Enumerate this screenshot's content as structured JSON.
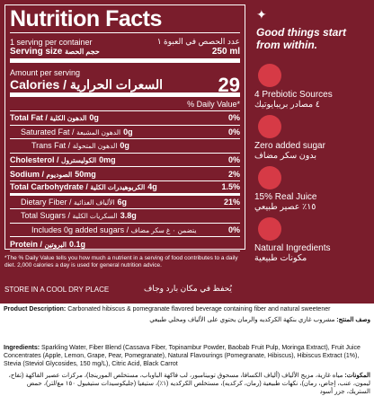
{
  "nutrition": {
    "title": "Nutrition Facts",
    "servings_en": "1 serving per container",
    "servings_ar": "عدد الحصص في العبوة ١",
    "serving_size_en": "Serving size",
    "serving_size_ar": "حجم الحصة",
    "serving_size_value": "250 ml",
    "amount_per_serving": "Amount per serving",
    "calories_en": "Calories /",
    "calories_ar": "السعرات الحرارية",
    "calories_value": "29",
    "daily_value_header": "% Daily Value*",
    "rows": [
      {
        "label_en": "Total Fat /",
        "label_ar": "الدهون الكلية",
        "amount": "0g",
        "dv": "0%"
      },
      {
        "label_en": "Saturated Fat /",
        "label_ar": "الدهون المشبعة",
        "amount": "0g",
        "dv": "0%"
      },
      {
        "label_en": "Trans Fat /",
        "label_ar": "الدهون المتحولة",
        "amount": "0g"
      },
      {
        "label_en": "Cholesterol /",
        "label_ar": "الكوليسترول",
        "amount": "0mg",
        "dv": "0%"
      },
      {
        "label_en": "Sodium /",
        "label_ar": "الصوديوم",
        "amount": "50mg",
        "dv": "2%"
      },
      {
        "label_en": "Total Carbohydrate /",
        "label_ar": "الكربوهيدرات الكلية",
        "amount": "4g",
        "dv": "1.5%"
      },
      {
        "label_en": "Dietary Fiber /",
        "label_ar": "الألياف الغذائية",
        "amount": "6g",
        "dv": "21%"
      },
      {
        "label_en": "Total Sugars /",
        "label_ar": "السكريات الكلية",
        "amount": "3.8g"
      },
      {
        "label_en": "Includes 0g added sugars /",
        "label_ar": "يتضمن ٠ غ سكر مضاف",
        "dv": "0%"
      },
      {
        "label_en": "Protein /",
        "label_ar": "البروتين",
        "amount": "0.1g"
      }
    ],
    "footnote": "*The % Daily Value tells you how much a nutrient in a serving of food contributes to a daily diet. 2,000 calories a day is used for general nutrition advice."
  },
  "tagline": "Good things start from within.",
  "features": [
    {
      "en": "4 Prebiotic Sources",
      "ar": "٤ مصادر بريبايوتيك"
    },
    {
      "en": "Zero added sugar",
      "ar": "بدون سكر مضاف"
    },
    {
      "en": "15% Real Juice",
      "ar": "١٥٪ عصير طبيعي"
    },
    {
      "en": "Natural Ingredients",
      "ar": "مكونات طبيعية"
    }
  ],
  "storage_en": "STORE IN A COOL DRY PLACE",
  "storage_ar": "يُحفظ في مكان بارد وجاف",
  "description": {
    "label_en": "Product Description:",
    "text_en": "Carbonated hibiscus & pomegranate flavored beverage containing fiber and natural sweetener",
    "label_ar": "وصف المنتج:",
    "text_ar": "مشروب غازي بنكهة الكركديه والرمان يحتوي على الألياف ومحلي طبيعي"
  },
  "ingredients": {
    "label_en": "Ingredients:",
    "text_en": "Sparkling Water, Fiber Blend (Cassava Fiber, Topinambur Powder, Baobab Fruit Pulp, Moringa Extract), Fruit Juice Concentrates (Apple, Lemon, Grape, Pear, Pomegranate), Natural Flavourings (Pomegranate, Hibiscus), Hibiscus Extract (1%), Stevia (Steviol Glycosides, 150 mg/L), Citric Acid, Black Carrot",
    "label_ar": "المكونات:",
    "text_ar": "مياه غازية، مزيج الألياف (ألياف الكسافا، مسحوق توبينامبور، لب فاكهة الباوباب، مستخلص المورينجا)، مركزات عصير الفاكهة (تفاح، ليمون، عنب، إجاص، رمان)، نكهات طبيعية (رمان، كركديه)، مستخلص الكركديه (١٪)، ستيفيا (جليكوسيدات ستيفيول ١٥٠ مغ/لتر)، حمض الستريك، جزر أسود"
  }
}
